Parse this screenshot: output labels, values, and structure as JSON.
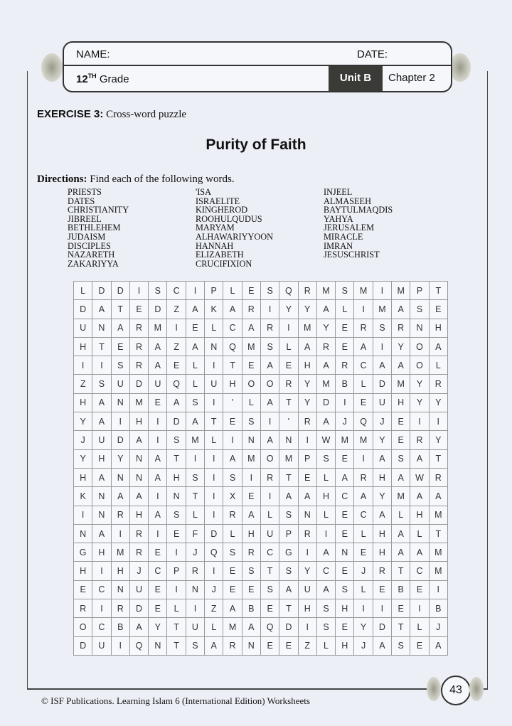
{
  "header": {
    "name_label": "NAME:",
    "date_label": "DATE:",
    "grade_num": "12",
    "grade_sup": "TH",
    "grade_label": "Grade",
    "unit": "Unit B",
    "chapter": "Chapter 2"
  },
  "exercise": {
    "label": "EXERCISE 3:",
    "text": "Cross-word puzzle"
  },
  "title": "Purity of Faith",
  "directions": {
    "label": "Directions:",
    "text": "Find each of the following words."
  },
  "words": [
    [
      "PRIESTS",
      "DATES",
      "CHRISTIANITY",
      "JIBREEL",
      "BETHLEHEM",
      "JUDAISM",
      "DISCIPLES",
      "NAZARETH",
      "ZAKARIYYA"
    ],
    [
      "'ISA",
      "ISRAELITE",
      "KINGHEROD",
      "ROOHULQUDUS",
      "MARYAM",
      "ALHAWARIYYOON",
      "HANNAH",
      "ELIZABETH",
      "CRUCIFIXION"
    ],
    [
      "INJEEL",
      "ALMASEEH",
      "BAYTULMAQDIS",
      "YAHYA",
      "JERUSALEM",
      "MIRACLE",
      "IMRAN",
      "JESUSCHRIST"
    ]
  ],
  "grid": [
    "LDDISCIPLESQRMSMIMPT",
    "DATEDZAKARIYYALIMASE",
    "UNARMIELCARIMYERSRNH",
    "HTERAZANQMSLAREAIYOA",
    "IISRAELITEAEHARCAAOL",
    "ZSUDUQLUHOORYMBLDMYR",
    "HANMEASI'LATYDIEUHYY",
    "YAIHIDATESI'RAJQJEII",
    "JUDAISMLINANIWMMYERY",
    "YHYNATIIAMOMPSEIASAT",
    "HANNAHSISIRTELARHAWR",
    "KNAAINTIXEIAAHCAYMAA",
    "INRHASLIRALSNLECALHM",
    "NAIRIEFDLHUPRIELHALT",
    "GHMREIJQSRCGIANEHAAM",
    "HIHJCPRIESTSYCEJRTCM",
    "ECNUEINJEESAUASLEBEI",
    "RIRDELIZABETHSHIIEIB",
    "OCBAYTULMAQDISEYDTLJ",
    "DUIQNTSARNEEZLHJASEA"
  ],
  "page_number": "43",
  "footer": "© ISF Publications. Learning Islam 6 (International Edition) Worksheets"
}
